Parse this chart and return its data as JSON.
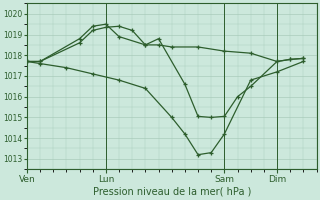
{
  "background_color": "#cce8dc",
  "grid_color": "#aaccbb",
  "line_color": "#2d5e2d",
  "xlabel": "Pression niveau de la mer( hPa )",
  "ylim": [
    1012.5,
    1020.5
  ],
  "yticks": [
    1013,
    1014,
    1015,
    1016,
    1017,
    1018,
    1019,
    1020
  ],
  "day_labels": [
    "Ven",
    "Lun",
    "Sam",
    "Dim"
  ],
  "day_positions": [
    0.0,
    3.0,
    7.5,
    9.5
  ],
  "xlim": [
    0,
    11
  ],
  "series1_x": [
    0,
    0.5,
    2.0,
    2.5,
    3.0,
    3.5,
    4.0,
    4.5,
    5.0,
    5.5,
    6.5,
    7.5,
    8.5,
    9.5,
    10.0,
    10.5
  ],
  "series1_y": [
    1017.7,
    1017.7,
    1018.6,
    1019.2,
    1019.35,
    1019.4,
    1019.2,
    1018.5,
    1018.5,
    1018.4,
    1018.4,
    1018.2,
    1018.1,
    1017.7,
    1017.8,
    1017.85
  ],
  "series2_x": [
    0,
    0.5,
    2.0,
    2.5,
    3.0,
    3.5,
    4.5,
    5.0,
    6.0,
    6.5,
    7.0,
    7.5,
    8.0,
    8.5,
    9.5,
    10.0,
    10.5
  ],
  "series2_y": [
    1017.7,
    1017.7,
    1018.8,
    1019.4,
    1019.5,
    1018.9,
    1018.5,
    1018.8,
    1016.6,
    1015.05,
    1015.0,
    1015.05,
    1016.0,
    1016.5,
    1017.7,
    1017.8,
    1017.85
  ],
  "series3_x": [
    0,
    0.5,
    1.5,
    2.5,
    3.5,
    4.5,
    5.5,
    6.0,
    6.5,
    7.0,
    7.5,
    8.5,
    9.5,
    10.5
  ],
  "series3_y": [
    1017.7,
    1017.6,
    1017.4,
    1017.1,
    1016.8,
    1016.4,
    1015.0,
    1014.2,
    1013.2,
    1013.3,
    1014.2,
    1016.8,
    1017.2,
    1017.7
  ]
}
